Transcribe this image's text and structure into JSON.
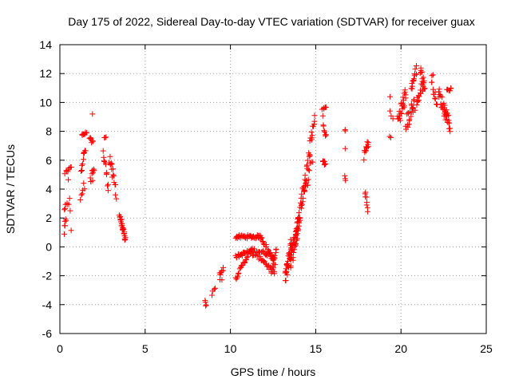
{
  "chart_data": {
    "type": "scatter",
    "title": "Day 175 of 2022, Sidereal Day-to-day VTEC variation (SDTVAR) for receiver guax",
    "xlabel": "GPS time / hours",
    "ylabel": "SDTVAR / TECUs",
    "xlim": [
      0,
      25
    ],
    "ylim": [
      -6,
      14
    ],
    "xticks": [
      0,
      5,
      10,
      15,
      20,
      25
    ],
    "yticks": [
      -6,
      -4,
      -2,
      0,
      2,
      4,
      6,
      8,
      10,
      12,
      14
    ],
    "grid": true,
    "marker": "+",
    "color": "#ff0000",
    "segments": [
      {
        "x0": 0.25,
        "x1": 0.35,
        "y0": 1.0,
        "y1": 1.9,
        "n": 6,
        "jitter": 0.3
      },
      {
        "x0": 0.25,
        "x1": 0.5,
        "y0": 2.7,
        "y1": 3.0,
        "n": 6,
        "jitter": 0.2
      },
      {
        "x0": 0.3,
        "x1": 0.65,
        "y0": 5.1,
        "y1": 5.6,
        "n": 8,
        "jitter": 0.15
      },
      {
        "x0": 0.5,
        "x1": 0.65,
        "y0": 4.5,
        "y1": 1.3,
        "n": 4,
        "jitter": 0.2
      },
      {
        "x0": 1.2,
        "x1": 1.45,
        "y0": 3.5,
        "y1": 4.3,
        "n": 6,
        "jitter": 0.3
      },
      {
        "x0": 1.25,
        "x1": 1.5,
        "y0": 5.5,
        "y1": 6.8,
        "n": 10,
        "jitter": 0.35
      },
      {
        "x0": 1.3,
        "x1": 1.55,
        "y0": 7.7,
        "y1": 7.9,
        "n": 8,
        "jitter": 0.1
      },
      {
        "x0": 1.75,
        "x1": 1.95,
        "y0": 7.5,
        "y1": 7.2,
        "n": 7,
        "jitter": 0.15
      },
      {
        "x0": 1.8,
        "x1": 2.0,
        "y0": 4.5,
        "y1": 5.3,
        "n": 10,
        "jitter": 0.45
      },
      {
        "x0": 1.9,
        "x1": 1.9,
        "y0": 9.2,
        "y1": 9.2,
        "n": 1,
        "jitter": 0
      },
      {
        "x0": 2.6,
        "x1": 2.7,
        "y0": 7.6,
        "y1": 7.6,
        "n": 3,
        "jitter": 0.05
      },
      {
        "x0": 2.55,
        "x1": 2.85,
        "y0": 6.5,
        "y1": 4.2,
        "n": 12,
        "jitter": 0.4
      },
      {
        "x0": 2.9,
        "x1": 3.3,
        "y0": 6.2,
        "y1": 3.8,
        "n": 16,
        "jitter": 0.5
      },
      {
        "x0": 3.5,
        "x1": 3.85,
        "y0": 2.2,
        "y1": 0.4,
        "n": 24,
        "jitter": 0.2
      },
      {
        "x0": 8.5,
        "x1": 8.6,
        "y0": -3.8,
        "y1": -4.1,
        "n": 4,
        "jitter": 0.1
      },
      {
        "x0": 8.9,
        "x1": 9.1,
        "y0": -3.3,
        "y1": -2.8,
        "n": 4,
        "jitter": 0.1
      },
      {
        "x0": 9.35,
        "x1": 9.6,
        "y0": -1.9,
        "y1": -1.5,
        "n": 8,
        "jitter": 0.15
      },
      {
        "x0": 9.4,
        "x1": 9.5,
        "y0": -2.3,
        "y1": -2.3,
        "n": 2,
        "jitter": 0.05
      },
      {
        "x0": 10.3,
        "x1": 11.8,
        "y0": 0.7,
        "y1": 0.7,
        "n": 40,
        "jitter": 0.12
      },
      {
        "x0": 11.8,
        "x1": 12.6,
        "y0": 0.7,
        "y1": -1.1,
        "n": 20,
        "jitter": 0.15
      },
      {
        "x0": 10.3,
        "x1": 11.3,
        "y0": -0.7,
        "y1": -0.2,
        "n": 24,
        "jitter": 0.12
      },
      {
        "x0": 11.3,
        "x1": 12.6,
        "y0": -0.2,
        "y1": -0.6,
        "n": 24,
        "jitter": 0.15
      },
      {
        "x0": 10.3,
        "x1": 11.1,
        "y0": -2.2,
        "y1": -0.4,
        "n": 20,
        "jitter": 0.12
      },
      {
        "x0": 11.1,
        "x1": 11.9,
        "y0": -0.4,
        "y1": -0.9,
        "n": 14,
        "jitter": 0.12
      },
      {
        "x0": 11.9,
        "x1": 12.6,
        "y0": -0.9,
        "y1": -1.9,
        "n": 14,
        "jitter": 0.15
      },
      {
        "x0": 12.4,
        "x1": 12.7,
        "y0": -1.8,
        "y1": -0.1,
        "n": 10,
        "jitter": 0.3
      },
      {
        "x0": 13.2,
        "x1": 13.6,
        "y0": -2.3,
        "y1": 0.5,
        "n": 34,
        "jitter": 0.55
      },
      {
        "x0": 13.5,
        "x1": 14.0,
        "y0": -1.0,
        "y1": 1.5,
        "n": 34,
        "jitter": 0.7
      },
      {
        "x0": 13.8,
        "x1": 14.4,
        "y0": 0.5,
        "y1": 4.7,
        "n": 40,
        "jitter": 0.6
      },
      {
        "x0": 14.4,
        "x1": 14.6,
        "y0": 4.0,
        "y1": 5.0,
        "n": 8,
        "jitter": 0.5
      },
      {
        "x0": 14.4,
        "x1": 14.95,
        "y0": 4.6,
        "y1": 9.2,
        "n": 22,
        "jitter": 0.6
      },
      {
        "x0": 14.7,
        "x1": 14.85,
        "y0": 5.8,
        "y1": 5.8,
        "n": 3,
        "jitter": 0.1
      },
      {
        "x0": 15.4,
        "x1": 15.6,
        "y0": 9.6,
        "y1": 9.6,
        "n": 6,
        "jitter": 0.08
      },
      {
        "x0": 15.4,
        "x1": 15.6,
        "y0": 8.9,
        "y1": 7.5,
        "n": 8,
        "jitter": 0.3
      },
      {
        "x0": 15.4,
        "x1": 15.6,
        "y0": 6.0,
        "y1": 5.6,
        "n": 8,
        "jitter": 0.15
      },
      {
        "x0": 16.7,
        "x1": 16.75,
        "y0": 8.1,
        "y1": 8.0,
        "n": 2,
        "jitter": 0.05
      },
      {
        "x0": 16.7,
        "x1": 16.7,
        "y0": 6.8,
        "y1": 6.8,
        "n": 1,
        "jitter": 0
      },
      {
        "x0": 16.7,
        "x1": 16.75,
        "y0": 4.9,
        "y1": 4.6,
        "n": 3,
        "jitter": 0.1
      },
      {
        "x0": 17.85,
        "x1": 18.1,
        "y0": 6.3,
        "y1": 7.3,
        "n": 12,
        "jitter": 0.3
      },
      {
        "x0": 17.9,
        "x1": 18.05,
        "y0": 3.8,
        "y1": 2.5,
        "n": 8,
        "jitter": 0.3
      },
      {
        "x0": 19.35,
        "x1": 19.4,
        "y0": 10.4,
        "y1": 10.4,
        "n": 1,
        "jitter": 0
      },
      {
        "x0": 19.35,
        "x1": 19.5,
        "y0": 9.4,
        "y1": 8.9,
        "n": 3,
        "jitter": 0.1
      },
      {
        "x0": 19.35,
        "x1": 19.4,
        "y0": 7.6,
        "y1": 7.6,
        "n": 2,
        "jitter": 0.05
      },
      {
        "x0": 19.8,
        "x1": 20.3,
        "y0": 8.7,
        "y1": 10.5,
        "n": 26,
        "jitter": 0.6
      },
      {
        "x0": 20.3,
        "x1": 20.8,
        "y0": 8.5,
        "y1": 10.0,
        "n": 22,
        "jitter": 0.6
      },
      {
        "x0": 20.6,
        "x1": 20.9,
        "y0": 11.0,
        "y1": 12.3,
        "n": 14,
        "jitter": 0.3
      },
      {
        "x0": 20.9,
        "x1": 21.3,
        "y0": 10.0,
        "y1": 11.2,
        "n": 14,
        "jitter": 0.4
      },
      {
        "x0": 21.15,
        "x1": 21.4,
        "y0": 12.3,
        "y1": 11.0,
        "n": 14,
        "jitter": 0.35
      },
      {
        "x0": 21.8,
        "x1": 21.9,
        "y0": 11.9,
        "y1": 11.9,
        "n": 2,
        "jitter": 0.05
      },
      {
        "x0": 21.8,
        "x1": 22.1,
        "y0": 11.3,
        "y1": 10.0,
        "n": 10,
        "jitter": 0.3
      },
      {
        "x0": 22.2,
        "x1": 22.7,
        "y0": 10.6,
        "y1": 9.0,
        "n": 22,
        "jitter": 0.45
      },
      {
        "x0": 22.6,
        "x1": 22.9,
        "y0": 9.6,
        "y1": 8.2,
        "n": 14,
        "jitter": 0.35
      },
      {
        "x0": 22.7,
        "x1": 22.95,
        "y0": 10.9,
        "y1": 10.9,
        "n": 6,
        "jitter": 0.1
      }
    ]
  }
}
